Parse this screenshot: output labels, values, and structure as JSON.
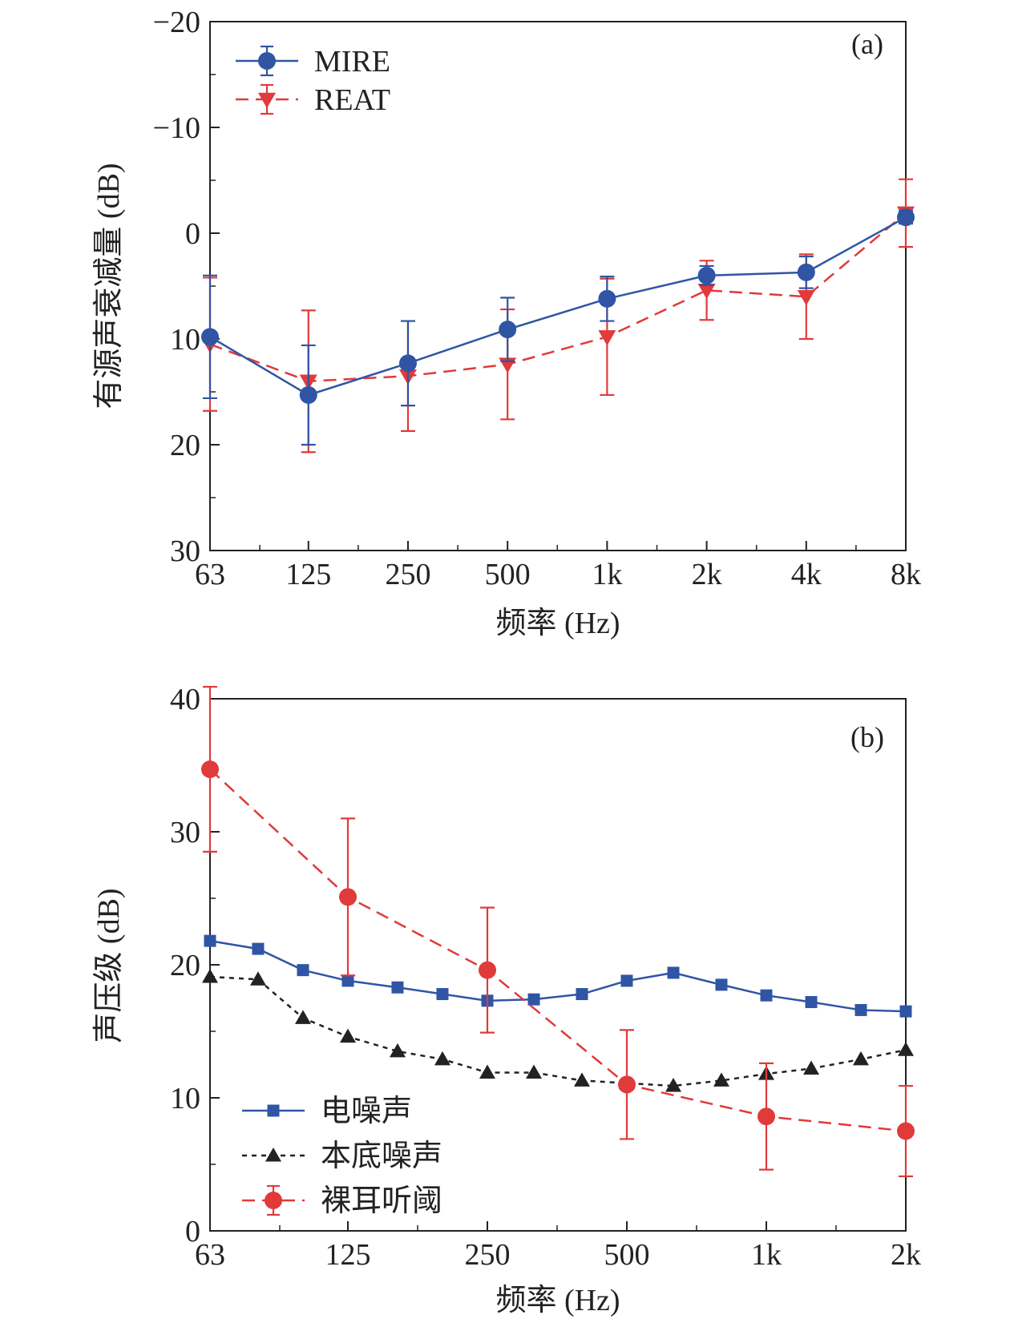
{
  "chart_data": [
    {
      "panel": "(a)",
      "type": "line",
      "x_tick_labels": [
        "63",
        "125",
        "250",
        "500",
        "1k",
        "2k",
        "4k",
        "8k"
      ],
      "x": [
        63,
        125,
        250,
        500,
        1000,
        2000,
        4000,
        8000
      ],
      "xlabel": "频率 (Hz)",
      "ylabel": "有源声衰减量 (dB)",
      "ylim": [
        30,
        -20
      ],
      "y_inverted": true,
      "x_scale": "log",
      "y_ticks": [
        -20,
        -10,
        0,
        10,
        20,
        30
      ],
      "y_tick_labels": [
        "−20",
        "−10",
        "0",
        "10",
        "20",
        "30"
      ],
      "grid": false,
      "legend_position": "top-left",
      "series": [
        {
          "name": "MIRE",
          "color": "#2f55a4",
          "marker": "circle",
          "line_style": "solid",
          "values": [
            9.8,
            15.3,
            12.3,
            9.1,
            6.2,
            4.0,
            3.7,
            -1.5
          ],
          "err": [
            5.8,
            4.7,
            4.0,
            3.0,
            2.1,
            0.9,
            1.5,
            0.6
          ]
        },
        {
          "name": "REAT",
          "color": "#e03a3a",
          "marker": "triangle-down",
          "line_style": "dashed",
          "values": [
            10.5,
            14.0,
            13.5,
            12.4,
            9.8,
            5.4,
            6.0,
            -1.9
          ],
          "err": [
            6.3,
            6.7,
            5.2,
            5.2,
            5.5,
            2.8,
            4.0,
            3.2
          ]
        }
      ]
    },
    {
      "panel": "(b)",
      "type": "line",
      "x_tick_labels": [
        "63",
        "125",
        "250",
        "500",
        "1k",
        "2k"
      ],
      "x_ticks": [
        63,
        125,
        250,
        500,
        1000,
        2000
      ],
      "xlabel": "频率 (Hz)",
      "ylabel": "声压级 (dB)",
      "ylim": [
        0,
        40
      ],
      "x_scale": "log",
      "y_ticks": [
        0,
        10,
        20,
        30,
        40
      ],
      "y_tick_labels": [
        "0",
        "10",
        "20",
        "30",
        "40"
      ],
      "grid": false,
      "legend_position": "bottom-left",
      "series": [
        {
          "name": "电噪声",
          "color": "#2f55a4",
          "marker": "square",
          "line_style": "solid",
          "x": [
            63,
            80,
            100,
            125,
            160,
            200,
            250,
            315,
            400,
            500,
            630,
            800,
            1000,
            1250,
            1600,
            2000
          ],
          "values": [
            21.8,
            21.2,
            19.6,
            18.8,
            18.3,
            17.8,
            17.3,
            17.4,
            17.8,
            18.8,
            19.4,
            18.5,
            17.7,
            17.2,
            16.6,
            16.5
          ]
        },
        {
          "name": "本底噪声",
          "color": "#222222",
          "marker": "triangle-up",
          "line_style": "dotted",
          "x": [
            63,
            80,
            100,
            125,
            160,
            200,
            250,
            315,
            400,
            500,
            630,
            800,
            1000,
            1250,
            1600,
            2000
          ],
          "values": [
            19.1,
            18.9,
            16.0,
            14.6,
            13.5,
            12.9,
            11.9,
            11.9,
            11.3,
            11.1,
            10.9,
            11.3,
            11.8,
            12.2,
            12.9,
            13.6
          ]
        },
        {
          "name": "裸耳听阈",
          "color": "#e03a3a",
          "marker": "circle",
          "line_style": "dashed",
          "x": [
            63,
            125,
            250,
            500,
            1000,
            2000
          ],
          "values": [
            34.7,
            25.1,
            19.6,
            11.0,
            8.6,
            7.5
          ],
          "err": [
            6.2,
            5.9,
            4.7,
            4.1,
            4.0,
            3.4
          ]
        }
      ]
    }
  ]
}
